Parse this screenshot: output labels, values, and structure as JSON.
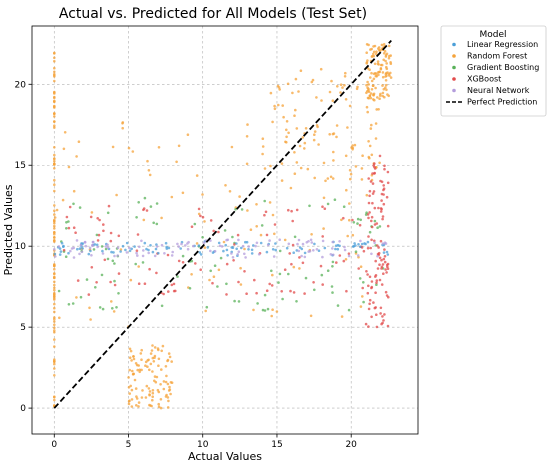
{
  "chart_data": {
    "type": "scatter",
    "title": "Actual vs. Predicted for All Models (Test Set)",
    "xlabel": "Actual Values",
    "ylabel": "Predicted Values",
    "xlim": [
      -1.5,
      24.5
    ],
    "ylim": [
      -1.6,
      23.6
    ],
    "x_ticks": [
      0,
      5,
      10,
      15,
      20
    ],
    "y_ticks": [
      0,
      5,
      10,
      15,
      20
    ],
    "grid": true,
    "legend": {
      "title": "Model",
      "placement": "outside-top-right",
      "entries": [
        {
          "label": "Linear Regression",
          "color": "#4c9fd8",
          "marker": "dot"
        },
        {
          "label": "Random Forest",
          "color": "#f5a33a",
          "marker": "dot"
        },
        {
          "label": "Gradient Boosting",
          "color": "#59b159",
          "marker": "dot"
        },
        {
          "label": "XGBoost",
          "color": "#e24a4a",
          "marker": "dot"
        },
        {
          "label": "Neural Network",
          "color": "#b49ddc",
          "marker": "dot"
        },
        {
          "label": "Perfect Prediction",
          "color": "#000000",
          "marker": "dashed-line"
        }
      ]
    },
    "reference_line": {
      "name": "Perfect Prediction",
      "x": [
        0,
        22.7
      ],
      "y": [
        0,
        22.7
      ]
    },
    "series": [
      {
        "name": "Random Forest",
        "color": "#f5a33a",
        "clusters": [
          {
            "x": [
              0,
              0
            ],
            "y": [
              0,
              22
            ]
          },
          {
            "x": [
              21,
              22.7
            ],
            "y": [
              19,
              22.5
            ]
          },
          {
            "x": [
              14,
              22
            ],
            "y": [
              14,
              21
            ]
          },
          {
            "x": [
              5,
              8
            ],
            "y": [
              0,
              4
            ]
          },
          {
            "x": [
              0,
              22
            ],
            "y": [
              5,
              18
            ]
          }
        ]
      },
      {
        "name": "Gradient Boosting",
        "color": "#59b159",
        "clusters": [
          {
            "x": [
              0,
              22.5
            ],
            "y": [
              6,
              13
            ]
          }
        ]
      },
      {
        "name": "XGBoost",
        "color": "#e24a4a",
        "clusters": [
          {
            "x": [
              21,
              22.5
            ],
            "y": [
              5,
              16
            ]
          },
          {
            "x": [
              0,
              22
            ],
            "y": [
              7,
              12.5
            ]
          }
        ]
      },
      {
        "name": "Linear Regression",
        "color": "#4c9fd8",
        "clusters": [
          {
            "x": [
              0,
              22.7
            ],
            "y": [
              9.4,
              10.3
            ]
          }
        ]
      },
      {
        "name": "Neural Network",
        "color": "#b49ddc",
        "clusters": [
          {
            "x": [
              0,
              22.7
            ],
            "y": [
              9.3,
              10.4
            ]
          }
        ]
      }
    ]
  }
}
